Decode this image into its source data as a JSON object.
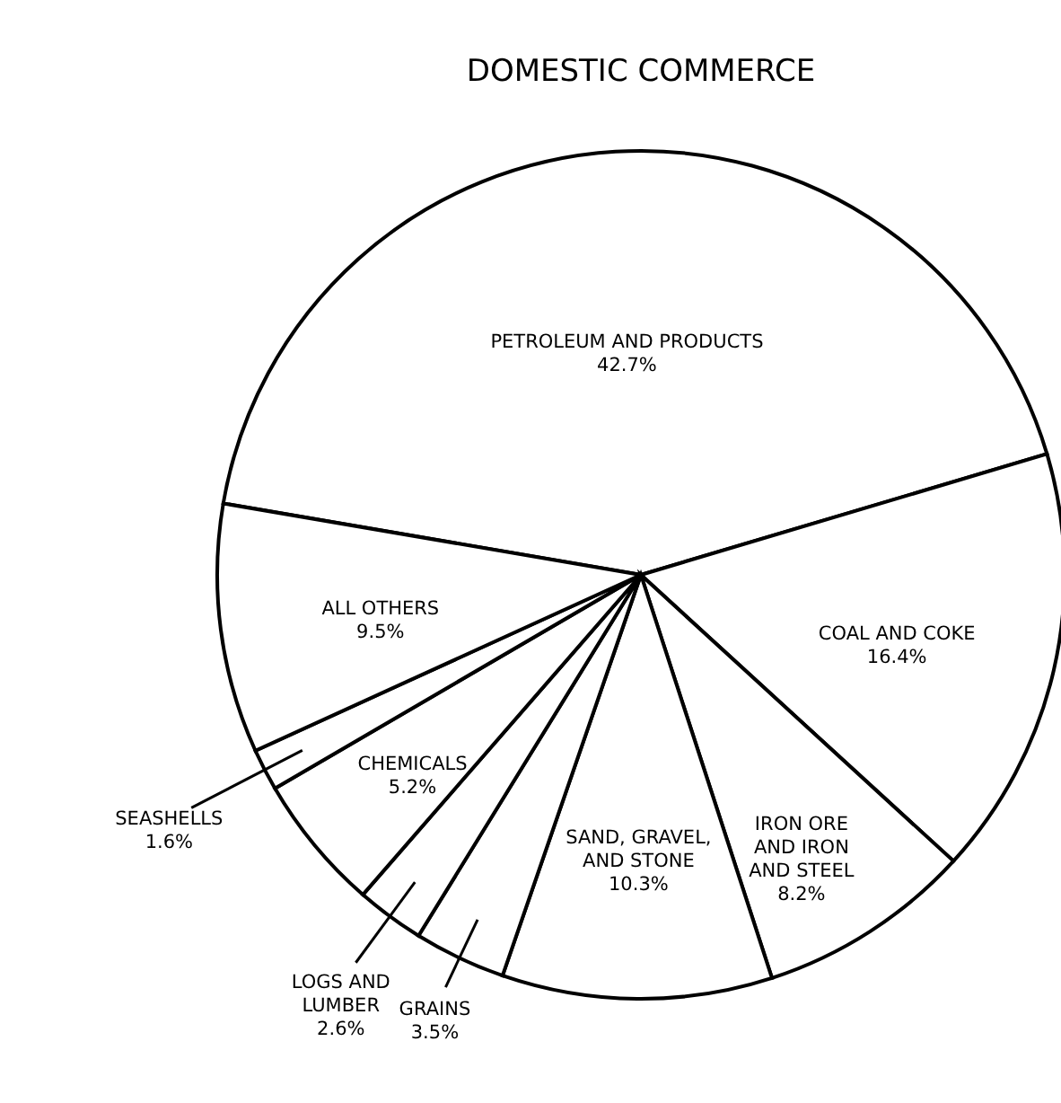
{
  "chart_data": {
    "type": "pie",
    "title": "DOMESTIC COMMERCE",
    "categories": [
      "PETROLEUM AND PRODUCTS",
      "COAL AND COKE",
      "IRON ORE AND IRON AND STEEL",
      "SAND, GRAVEL, AND STONE",
      "GRAINS",
      "LOGS AND LUMBER",
      "CHEMICALS",
      "SEASHELLS",
      "ALL OTHERS"
    ],
    "values": [
      42.7,
      16.4,
      8.2,
      10.3,
      3.5,
      2.6,
      5.2,
      1.6,
      9.5
    ],
    "colors": [
      "#ffffff",
      "#ffffff",
      "#ffffff",
      "#ffffff",
      "#ffffff",
      "#ffffff",
      "#ffffff",
      "#ffffff",
      "#ffffff"
    ],
    "value_labels": [
      "42.7%",
      "16.4%",
      "8.2%",
      "10.3%",
      "3.5%",
      "2.6%",
      "5.2%",
      "1.6%",
      "9.5%"
    ]
  }
}
